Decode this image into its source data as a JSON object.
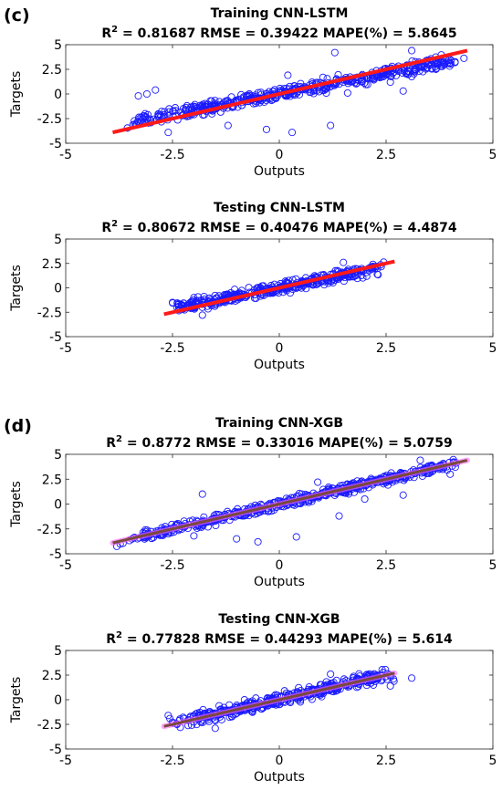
{
  "panels": [
    {
      "label": "(c)"
    },
    {
      "label": "(d)"
    }
  ],
  "colors": {
    "points": "#1a1aff",
    "fit_line": "#ff1a1a",
    "fit_line_xgb": "#7a4a3a",
    "band_xgb": "#ff66ff"
  },
  "chart_data": [
    {
      "type": "scatter",
      "title": "Training CNN-LSTM",
      "stats": {
        "r2_label": "R",
        "r2_sup": "2",
        "r2": "= 0.81687",
        "rmse": "RMSE = 0.39422",
        "mape": "MAPE(%)  =  5.8645"
      },
      "xlabel": "Outputs",
      "ylabel": "Targets",
      "xlim": [
        -5,
        5
      ],
      "ylim": [
        -5,
        5
      ],
      "xticks": [
        "-5",
        "-2.5",
        "0",
        "2.5",
        "5"
      ],
      "yticks": [
        "5",
        "2.5",
        "0",
        "-2.5",
        "-5"
      ],
      "fit": {
        "x": [
          -3.9,
          4.4
        ],
        "y": [
          -3.9,
          4.4
        ]
      },
      "spread": {
        "x": [
          -3.9,
          4.4
        ],
        "noise": 0.45,
        "slope": 0.82,
        "count": 520,
        "seed": 11
      },
      "outliers": [
        [
          -3.1,
          0.0
        ],
        [
          -2.9,
          0.4
        ],
        [
          -3.3,
          -0.2
        ],
        [
          -2.6,
          -3.9
        ],
        [
          -0.3,
          -3.6
        ],
        [
          0.3,
          -3.9
        ],
        [
          1.2,
          -3.2
        ],
        [
          -2.2,
          -1.6
        ],
        [
          1.6,
          0.1
        ],
        [
          3.1,
          4.4
        ],
        [
          2.6,
          1.2
        ],
        [
          -1.2,
          -3.2
        ],
        [
          0.2,
          1.9
        ],
        [
          2.9,
          0.3
        ],
        [
          1.3,
          4.2
        ]
      ]
    },
    {
      "type": "scatter",
      "title": "Testing CNN-LSTM",
      "stats": {
        "r2_label": "R",
        "r2_sup": "2",
        "r2": "= 0.80672",
        "rmse": "RMSE = 0.40476",
        "mape": "MAPE(%)  =  4.4874"
      },
      "xlabel": "Outputs",
      "ylabel": "Targets",
      "xlim": [
        -5,
        5
      ],
      "ylim": [
        -5,
        5
      ],
      "xticks": [
        "-5",
        "-2.5",
        "0",
        "2.5",
        "5"
      ],
      "yticks": [
        "5",
        "2.5",
        "0",
        "-2.5",
        "-5"
      ],
      "fit": {
        "x": [
          -2.7,
          2.7
        ],
        "y": [
          -2.7,
          2.7
        ]
      },
      "spread": {
        "x": [
          -2.6,
          2.6
        ],
        "noise": 0.4,
        "slope": 0.85,
        "count": 420,
        "seed": 23
      },
      "outliers": [
        [
          -2.5,
          -1.5
        ],
        [
          -2.0,
          -1.0
        ],
        [
          2.3,
          2.0
        ],
        [
          1.5,
          2.6
        ],
        [
          -1.8,
          -2.8
        ]
      ]
    },
    {
      "type": "scatter",
      "title": "Training CNN-XGB",
      "stats": {
        "r2_label": "R",
        "r2_sup": "2",
        "r2": "= 0.8772",
        "rmse": "RMSE = 0.33016",
        "mape": "MAPE(%)  =  5.0759"
      },
      "xlabel": "Outputs",
      "ylabel": "Targets",
      "xlim": [
        -5,
        5
      ],
      "ylim": [
        -5,
        5
      ],
      "xticks": [
        "-5",
        "-2.5",
        "0",
        "2.5",
        "5"
      ],
      "yticks": [
        "5",
        "2.5",
        "0",
        "-2.5",
        "-5"
      ],
      "fit": {
        "x": [
          -3.9,
          4.4
        ],
        "y": [
          -3.9,
          4.4
        ]
      },
      "spread": {
        "x": [
          -3.9,
          4.4
        ],
        "noise": 0.35,
        "slope": 1.0,
        "count": 520,
        "seed": 37
      },
      "outliers": [
        [
          -1.0,
          -3.5
        ],
        [
          -0.5,
          -3.8
        ],
        [
          0.4,
          -3.3
        ],
        [
          2.0,
          0.5
        ],
        [
          -1.8,
          1.0
        ],
        [
          0.9,
          2.2
        ],
        [
          2.9,
          0.9
        ],
        [
          4.0,
          3.0
        ],
        [
          3.3,
          4.4
        ],
        [
          -2.0,
          -3.2
        ],
        [
          1.4,
          -1.2
        ]
      ]
    },
    {
      "type": "scatter",
      "title": "Testing CNN-XGB",
      "stats": {
        "r2_label": "R",
        "r2_sup": "2",
        "r2": "= 0.77828",
        "rmse": "RMSE = 0.44293",
        "mape": "MAPE(%)  =  5.614"
      },
      "xlabel": "Outputs",
      "ylabel": "Targets",
      "xlim": [
        -5,
        5
      ],
      "ylim": [
        -5,
        5
      ],
      "xticks": [
        "-5",
        "-2.5",
        "0",
        "2.5",
        "5"
      ],
      "yticks": [
        "5",
        "2.5",
        "0",
        "-2.5",
        "-5"
      ],
      "fit": {
        "x": [
          -2.7,
          2.7
        ],
        "y": [
          -2.7,
          2.7
        ]
      },
      "spread": {
        "x": [
          -2.6,
          2.8
        ],
        "noise": 0.45,
        "slope": 1.0,
        "count": 420,
        "seed": 51
      },
      "outliers": [
        [
          3.1,
          2.2
        ],
        [
          2.6,
          1.4
        ],
        [
          -2.6,
          -1.6
        ],
        [
          1.2,
          2.6
        ],
        [
          -1.5,
          -2.9
        ]
      ]
    }
  ]
}
